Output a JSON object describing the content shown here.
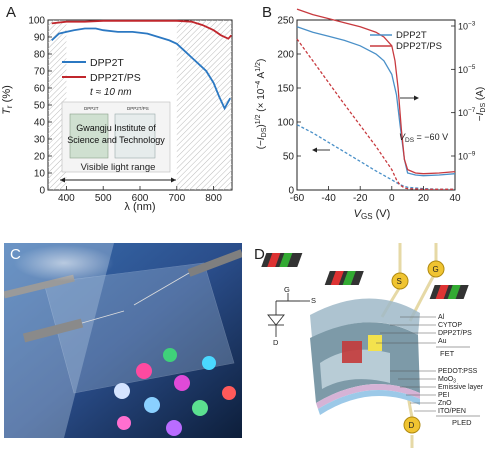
{
  "panels": {
    "a": "A",
    "b": "B",
    "c": "C",
    "d": "D"
  },
  "chart_data": [
    {
      "type": "line",
      "panel": "A",
      "xlabel": "λ (nm)",
      "ylabel": "T",
      "ylabel_sub": "r",
      "ylabel_unit": " (%)",
      "xlim": [
        350,
        850
      ],
      "ylim": [
        0,
        100
      ],
      "x_ticks": [
        400,
        500,
        600,
        700,
        800
      ],
      "y_ticks": [
        0,
        10,
        20,
        30,
        40,
        50,
        60,
        70,
        80,
        90,
        100
      ],
      "legend_placement": "top-center",
      "series": [
        {
          "name": "DPP2T",
          "color": "#2b78c2",
          "x": [
            360,
            380,
            400,
            420,
            450,
            480,
            500,
            540,
            580,
            620,
            650,
            680,
            700,
            720,
            740,
            760,
            780,
            800,
            815,
            830,
            845
          ],
          "y": [
            88,
            92,
            93,
            94,
            95,
            95,
            94,
            93,
            93,
            92,
            90,
            88,
            86,
            82,
            78,
            74,
            70,
            63,
            55,
            48,
            54
          ]
        },
        {
          "name": "DPP2T/PS",
          "color": "#c0262c",
          "x": [
            360,
            400,
            450,
            500,
            550,
            600,
            650,
            700,
            740,
            770,
            800,
            820,
            840,
            848
          ],
          "y": [
            98,
            99,
            99,
            99.5,
            99.5,
            99.5,
            99.5,
            99.5,
            99,
            97,
            94,
            91,
            89,
            91
          ]
        }
      ],
      "thickness_note": "t ≈ 10 nm",
      "inset": {
        "top_labels": [
          "DPP2T",
          "DPP2T/PS"
        ],
        "text": [
          "Gwangju Institute of",
          "Science and Technology"
        ]
      },
      "range_label": "Visible light range"
    },
    {
      "type": "line",
      "panel": "B",
      "xlabel": "V",
      "xlabel_sub": "GS",
      "xlabel_unit": " (V)",
      "ylabel_left": "(−I_DS)^1/2 (× 10^−4 A^1/2)",
      "ylabel_right": "−I_DS (A)",
      "xlim": [
        -60,
        40
      ],
      "ylim_left": [
        0,
        250
      ],
      "x_ticks": [
        -60,
        -40,
        -20,
        0,
        20,
        40
      ],
      "y_ticks_left": [
        0,
        50,
        100,
        150,
        200,
        250
      ],
      "y_ticks_right": [
        "10^-3",
        "10^-5",
        "10^-7",
        "10^-9"
      ],
      "annotation": "V_DS = −60 V",
      "series": [
        {
          "name": "DPP2T",
          "color": "#4a90c8",
          "axis": "left",
          "x": [
            -60,
            -50,
            -40,
            -30,
            -20,
            -10,
            -5,
            0,
            3,
            5,
            8,
            10,
            15,
            20,
            30,
            40
          ],
          "y": [
            240,
            232,
            226,
            220,
            212,
            200,
            190,
            170,
            140,
            100,
            45,
            25,
            22,
            21,
            22,
            24
          ]
        },
        {
          "name": "DPP2T/PS",
          "color": "#c83a3f",
          "axis": "left",
          "x": [
            -60,
            -50,
            -40,
            -30,
            -20,
            -10,
            -5,
            0,
            2,
            4,
            6,
            8,
            10,
            15,
            20,
            30,
            40
          ],
          "y": [
            266,
            258,
            252,
            246,
            240,
            232,
            225,
            212,
            190,
            150,
            90,
            45,
            30,
            25,
            24,
            25,
            27
          ]
        },
        {
          "name": "DPP2T transfer (dashed)",
          "color": "#4a90c8",
          "axis": "left",
          "x": [
            -60,
            -50,
            -40,
            -30,
            -20,
            -10,
            0,
            5,
            10,
            20,
            30,
            40
          ],
          "y": [
            96,
            84,
            70,
            56,
            42,
            28,
            15,
            8,
            4,
            2,
            1,
            1
          ]
        },
        {
          "name": "DPP2T/PS transfer (dashed)",
          "color": "#c83a3f",
          "axis": "left",
          "x": [
            -60,
            -50,
            -40,
            -30,
            -20,
            -10,
            0,
            3,
            5,
            8,
            10,
            20,
            30,
            40
          ],
          "y": [
            222,
            190,
            158,
            126,
            95,
            64,
            30,
            15,
            8,
            3,
            2,
            1,
            1,
            1
          ]
        }
      ]
    }
  ],
  "panel_d": {
    "terminals": {
      "gate": "G",
      "source": "S",
      "drain": "D"
    },
    "pins": [
      "S",
      "G",
      "D"
    ],
    "fet_layers": [
      "Al",
      "CYTOP",
      "DPP2T/PS",
      "Au"
    ],
    "fet_label": "FET",
    "pled_layers": [
      "PEDOT:PSS",
      "MoO",
      "Emissive layer",
      "PEI",
      "ZnO",
      "ITO/PEN"
    ],
    "moo_sub": "3",
    "pled_label": "PLED",
    "logo_letters": [
      "G",
      "I",
      "S",
      "T"
    ]
  }
}
